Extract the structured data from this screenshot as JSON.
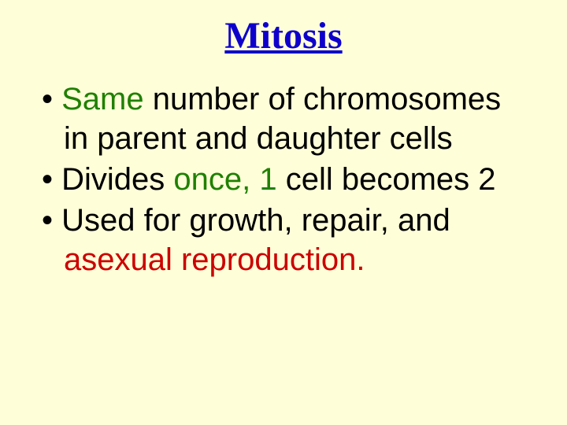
{
  "slide": {
    "title": "Mitosis",
    "background_color": "#feffd9",
    "title_color": "#0e00cc",
    "title_font": "Times New Roman",
    "title_fontsize": 48,
    "title_underline": true,
    "body_fontsize": 40,
    "body_color": "#000000",
    "accent_green": "#208000",
    "accent_red": "#cc0000",
    "bullets": [
      {
        "pre": "",
        "accent": "Same",
        "post": " number of chromosomes in parent and daughter cells",
        "accent_color": "green"
      },
      {
        "pre": "Divides ",
        "accent": "once, 1",
        "post": " cell becomes 2",
        "accent_color": "green"
      },
      {
        "pre": "Used for growth, repair, and ",
        "accent": "asexual reproduction.",
        "post": "",
        "accent_color": "red"
      }
    ]
  }
}
